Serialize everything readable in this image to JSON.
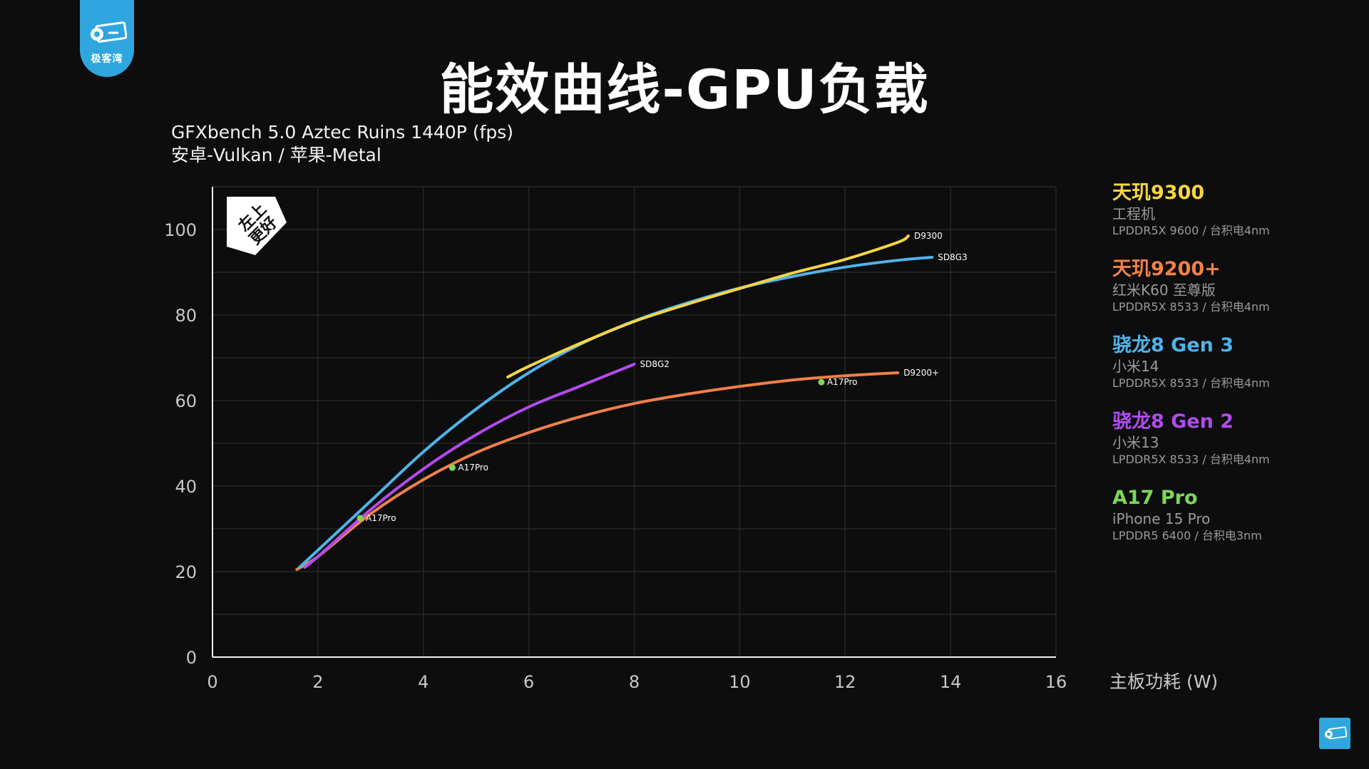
{
  "brand": {
    "name": "极客湾",
    "color": "#2fa6de"
  },
  "page_title": "能效曲线-GPU负载",
  "subtitle": {
    "line1": "GFXbench 5.0 Aztec Ruins 1440P (fps)",
    "line2": "安卓-Vulkan / 苹果-Metal"
  },
  "badge": {
    "line1": "左上",
    "line2": "更好"
  },
  "chart_data": {
    "type": "line",
    "title": "能效曲线-GPU负载",
    "xlabel": "主板功耗 (W)",
    "ylabel": "",
    "xlim": [
      0,
      16
    ],
    "ylim": [
      0,
      110
    ],
    "xticks": [
      0,
      2,
      4,
      6,
      8,
      10,
      12,
      14,
      16
    ],
    "yticks": [
      0,
      20,
      40,
      60,
      80,
      100
    ],
    "grid": true,
    "legend_position": "right",
    "series": [
      {
        "name": "天玑9300",
        "label": "D9300",
        "color": "#f5d547",
        "points": [
          [
            5.6,
            65.5
          ],
          [
            6.0,
            68
          ],
          [
            7,
            73.5
          ],
          [
            8,
            78.5
          ],
          [
            9,
            82.5
          ],
          [
            10,
            86.2
          ],
          [
            11,
            89.8
          ],
          [
            12,
            93
          ],
          [
            13,
            97
          ],
          [
            13.2,
            98.5
          ]
        ]
      },
      {
        "name": "骁龙8 Gen 3",
        "label": "SD8G3",
        "color": "#4fb3ea",
        "points": [
          [
            1.65,
            21
          ],
          [
            2,
            25
          ],
          [
            3,
            36.5
          ],
          [
            4,
            48
          ],
          [
            5,
            58
          ],
          [
            6,
            66.5
          ],
          [
            7,
            73.3
          ],
          [
            8,
            78.6
          ],
          [
            9,
            82.8
          ],
          [
            10,
            86.3
          ],
          [
            11,
            89
          ],
          [
            12,
            91.2
          ],
          [
            13,
            92.8
          ],
          [
            13.65,
            93.5
          ]
        ]
      },
      {
        "name": "骁龙8 Gen 2",
        "label": "SD8G2",
        "color": "#b24bf0",
        "points": [
          [
            1.75,
            21
          ],
          [
            2,
            23.5
          ],
          [
            3,
            34.5
          ],
          [
            4,
            44
          ],
          [
            5,
            52
          ],
          [
            6,
            58.5
          ],
          [
            7,
            63.5
          ],
          [
            8,
            68.5
          ]
        ]
      },
      {
        "name": "天玑9200+",
        "label": "D9200+",
        "color": "#f2804a",
        "points": [
          [
            1.6,
            20.5
          ],
          [
            2,
            23.5
          ],
          [
            3,
            33.5
          ],
          [
            4,
            41.5
          ],
          [
            5,
            47.8
          ],
          [
            6,
            52.5
          ],
          [
            7,
            56.3
          ],
          [
            8,
            59.3
          ],
          [
            9,
            61.5
          ],
          [
            10,
            63.3
          ],
          [
            11,
            64.8
          ],
          [
            12,
            65.8
          ],
          [
            13,
            66.5
          ]
        ]
      }
    ],
    "points_series": {
      "name": "A17 Pro",
      "color": "#7dd75a",
      "points": [
        {
          "x": 2.8,
          "y": 32.5,
          "label": "A17Pro"
        },
        {
          "x": 4.55,
          "y": 44.3,
          "label": "A17Pro"
        },
        {
          "x": 11.55,
          "y": 64.3,
          "label": "A17Pro"
        }
      ]
    }
  },
  "legend": [
    {
      "name": "天玑9300",
      "color": "#f5d547",
      "device": "工程机",
      "spec": "LPDDR5X 9600 / 台积电4nm"
    },
    {
      "name": "天玑9200+",
      "color": "#f2804a",
      "device": "红米K60 至尊版",
      "spec": "LPDDR5X 8533 / 台积电4nm"
    },
    {
      "name": "骁龙8 Gen 3",
      "color": "#4fb3ea",
      "device": "小米14",
      "spec": "LPDDR5X 8533 / 台积电4nm"
    },
    {
      "name": "骁龙8 Gen 2",
      "color": "#b24bf0",
      "device": "小米13",
      "spec": "LPDDR5X 8533 / 台积电4nm"
    },
    {
      "name": "A17 Pro",
      "color": "#7dd75a",
      "device": "iPhone 15 Pro",
      "spec": "LPDDR5 6400 / 台积电3nm"
    }
  ]
}
